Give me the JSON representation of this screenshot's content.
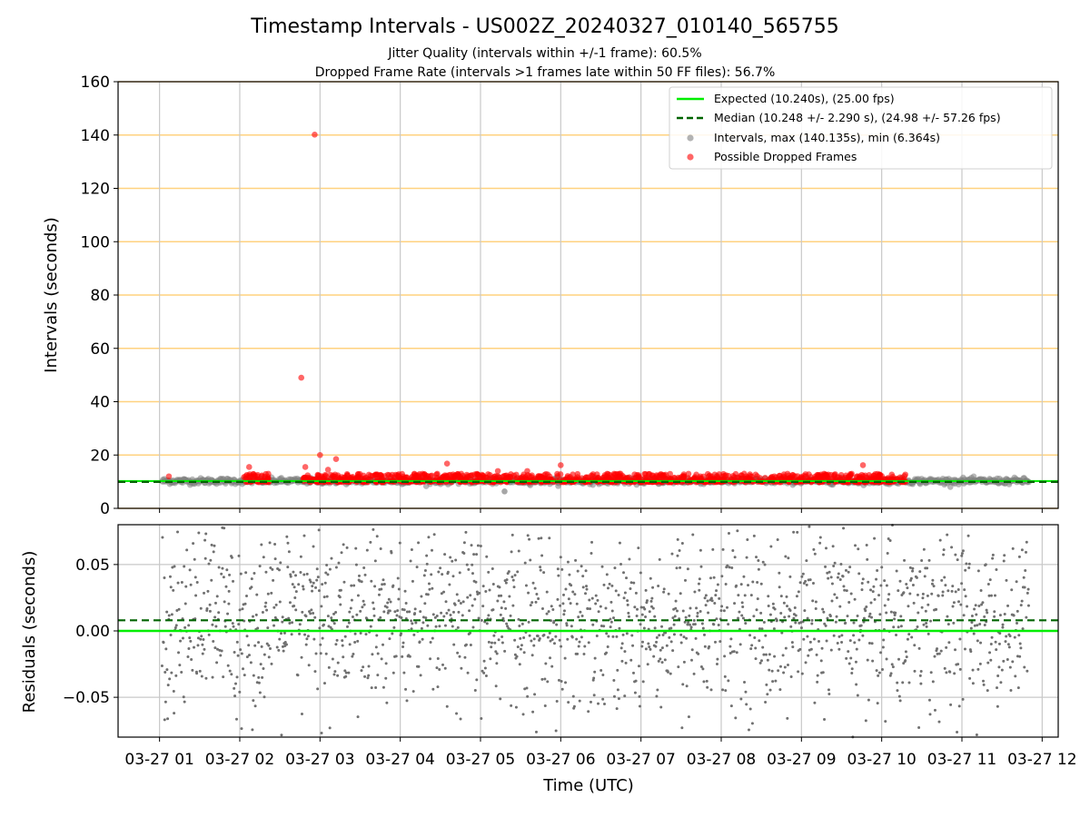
{
  "chart_data": [
    {
      "type": "scatter",
      "title": "Timestamp Intervals - US002Z_20240327_010140_565755",
      "subtitle_lines": [
        "Jitter Quality (intervals within +/-1 frame): 60.5%",
        "Dropped Frame Rate (intervals >1 frames late within 50 FF files): 56.7%"
      ],
      "xlabel": "",
      "ylabel": "Intervals (seconds)",
      "xlim": [
        "2024-03-27 00:29",
        "2024-03-27 12:12"
      ],
      "ylim": [
        0,
        160
      ],
      "yticks": [
        0,
        20,
        40,
        60,
        80,
        100,
        120,
        140,
        160
      ],
      "grid": "vertical at hour ticks; horizontal orange lines at y ticks",
      "colors": {
        "expected": "#00ee00",
        "median": "#006400",
        "intervals": "#808080",
        "dropped": "#ff0000",
        "hgrid": "#ffd27f",
        "vgrid": "#c8c8c8"
      },
      "legend_position": "top-right",
      "legend": [
        "Expected (10.240s), (25.00 fps)",
        "Median (10.248 +/- 2.290 s), (24.98 +/- 57.26 fps)",
        "Intervals, max (140.135s), min (6.364s)",
        "Possible Dropped Frames"
      ],
      "series": [
        {
          "name": "Expected (10.240s), (25.00 fps)",
          "kind": "hline",
          "y": 10.24
        },
        {
          "name": "Median (10.248 +/- 2.290 s), (24.98 +/- 57.26 fps)",
          "kind": "hline-dashed",
          "y": 10.248
        },
        {
          "name": "Intervals, max (140.135s), min (6.364s)",
          "kind": "points",
          "time_range": [
            "2024-03-27 01:02",
            "2024-03-27 11:50"
          ],
          "typical_range": [
            8.5,
            11.5
          ],
          "max": 140.135,
          "min": 6.364
        },
        {
          "name": "Possible Dropped Frames",
          "kind": "points",
          "band_time_ranges": [
            [
              "2024-03-27 02:03",
              "2024-03-27 02:22"
            ],
            [
              "2024-03-27 02:47",
              "2024-03-27 10:18"
            ]
          ],
          "band_range": [
            9.8,
            13.0
          ],
          "outliers": [
            {
              "t": "2024-03-27 01:07",
              "y": 12.0
            },
            {
              "t": "2024-03-27 02:07",
              "y": 15.5
            },
            {
              "t": "2024-03-27 02:46",
              "y": 49.0
            },
            {
              "t": "2024-03-27 02:49",
              "y": 15.5
            },
            {
              "t": "2024-03-27 02:56",
              "y": 140.135
            },
            {
              "t": "2024-03-27 03:00",
              "y": 20.0
            },
            {
              "t": "2024-03-27 03:06",
              "y": 14.5
            },
            {
              "t": "2024-03-27 03:12",
              "y": 18.5
            },
            {
              "t": "2024-03-27 04:35",
              "y": 16.8
            },
            {
              "t": "2024-03-27 05:13",
              "y": 14.0
            },
            {
              "t": "2024-03-27 05:35",
              "y": 14.0
            },
            {
              "t": "2024-03-27 06:00",
              "y": 16.2
            },
            {
              "t": "2024-03-27 09:46",
              "y": 16.2
            }
          ]
        }
      ]
    },
    {
      "type": "scatter",
      "title": "",
      "xlabel": "Time (UTC)",
      "ylabel": "Residuals (seconds)",
      "xlim": [
        "2024-03-27 00:29",
        "2024-03-27 12:12"
      ],
      "ylim": [
        -0.08,
        0.08
      ],
      "yticks": [
        -0.05,
        0.0,
        0.05
      ],
      "ytick_labels": [
        "−0.05",
        "0.00",
        "0.05"
      ],
      "xticks": [
        "2024-03-27 01:00",
        "2024-03-27 02:00",
        "2024-03-27 03:00",
        "2024-03-27 04:00",
        "2024-03-27 05:00",
        "2024-03-27 06:00",
        "2024-03-27 07:00",
        "2024-03-27 08:00",
        "2024-03-27 09:00",
        "2024-03-27 10:00",
        "2024-03-27 11:00",
        "2024-03-27 12:00"
      ],
      "xtick_labels": [
        "03-27 01",
        "03-27 02",
        "03-27 03",
        "03-27 04",
        "03-27 05",
        "03-27 06",
        "03-27 07",
        "03-27 08",
        "03-27 09",
        "03-27 10",
        "03-27 11",
        "03-27 12"
      ],
      "grid": true,
      "series": [
        {
          "kind": "hline",
          "y": 0.0,
          "color": "#00ee00"
        },
        {
          "kind": "hline-dashed",
          "y": 0.008,
          "color": "#006400"
        },
        {
          "kind": "points",
          "color": "#707070",
          "time_range": [
            "2024-03-27 01:02",
            "2024-03-27 11:50"
          ],
          "y_spread": [
            -0.08,
            0.08
          ],
          "y_mean": 0.008,
          "y_std": 0.035
        }
      ]
    }
  ]
}
